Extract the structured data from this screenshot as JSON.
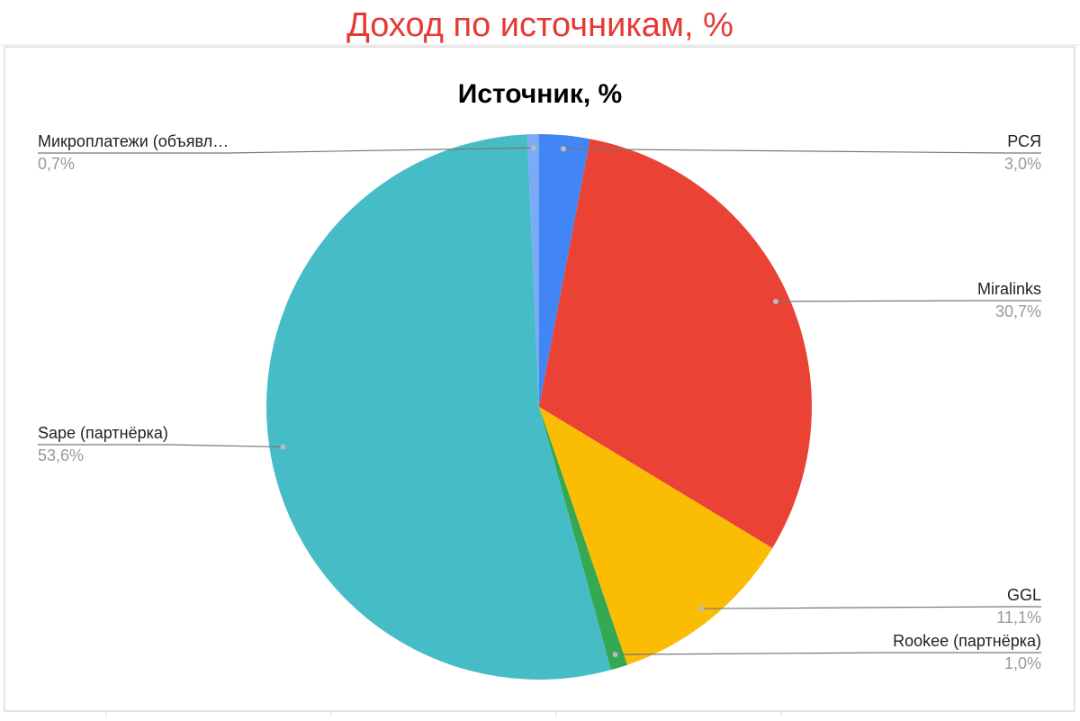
{
  "page_title": "Доход по источникам, %",
  "chart_data": {
    "type": "pie",
    "title": "Источник, %",
    "categories": [
      "РСЯ",
      "Miralinks",
      "GGL",
      "Rookee (партнёрка)",
      "Sape (партнёрка)",
      "Микроплатежи (объявл…"
    ],
    "values": [
      3.0,
      30.7,
      11.1,
      1.0,
      53.6,
      0.7
    ],
    "value_labels": [
      "3,0%",
      "30,7%",
      "11,1%",
      "1,0%",
      "53,6%",
      "0,7%"
    ],
    "colors": [
      "#4285f4",
      "#ea4335",
      "#fbbc04",
      "#34a853",
      "#46bdc6",
      "#7baaf7"
    ]
  }
}
